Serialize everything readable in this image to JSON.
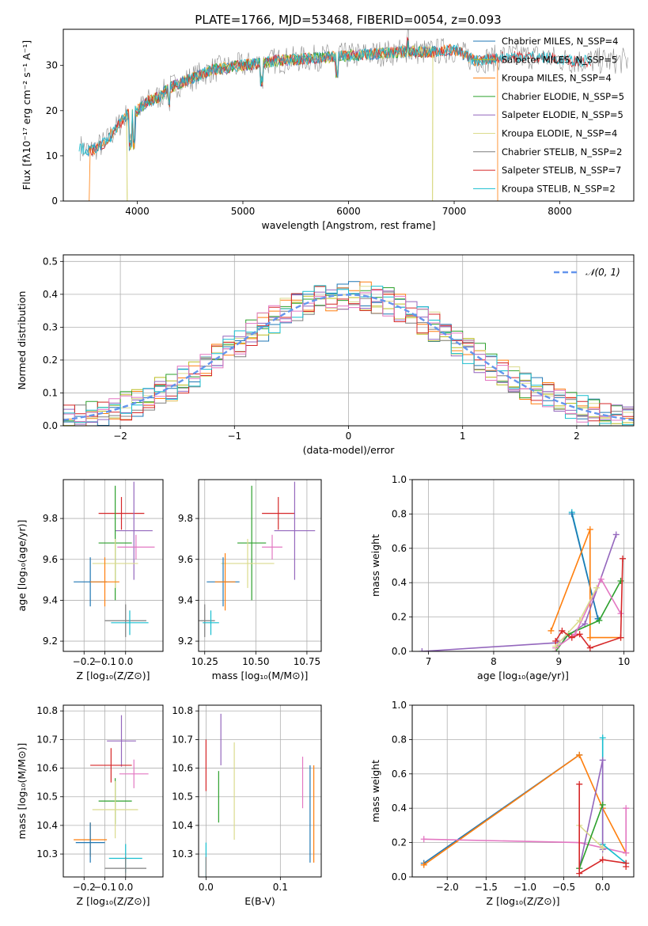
{
  "figure": {
    "title": "PLATE=1766, MJD=53468, FIBERID=0054, z=0.093"
  },
  "colors": {
    "Chabrier MILES": "#1f77b4",
    "Salpeter MILES": "#bcbd22",
    "Kroupa MILES": "#ff7f0e",
    "Chabrier ELODIE": "#2ca02c",
    "Salpeter ELODIE": "#9467bd",
    "Kroupa ELODIE": "#dbdb8d",
    "Chabrier STELIB": "#7f7f7f",
    "Salpeter STELIB": "#d62728",
    "Kroupa STELIB": "#17becf",
    "pink": "#e377c2",
    "normal_line": "#6495ed"
  },
  "chart_data": [
    {
      "id": "spectrum",
      "type": "line",
      "xlabel": "wavelength [Angstrom, rest frame]",
      "ylabel": "Flux [fλ10⁻¹⁷ erg cm⁻² s⁻¹ A⁻¹]",
      "xlim": [
        3300,
        8700
      ],
      "ylim": [
        0,
        38
      ],
      "xticks": [
        4000,
        5000,
        6000,
        7000,
        8000
      ],
      "yticks": [
        0,
        10,
        20,
        30
      ],
      "grid": false,
      "legend": "right",
      "series": [
        {
          "name": "Chabrier MILES, N_SSP=4"
        },
        {
          "name": "Salpeter MILES, N_SSP=5"
        },
        {
          "name": "Kroupa MILES, N_SSP=4"
        },
        {
          "name": "Chabrier ELODIE, N_SSP=5"
        },
        {
          "name": "Salpeter ELODIE, N_SSP=5"
        },
        {
          "name": "Kroupa ELODIE, N_SSP=4"
        },
        {
          "name": "Chabrier STELIB, N_SSP=2"
        },
        {
          "name": "Salpeter STELIB, N_SSP=7"
        },
        {
          "name": "Kroupa STELIB, N_SSP=2"
        }
      ],
      "continuum": {
        "x": [
          3450,
          3550,
          3700,
          3800,
          3900,
          4000,
          4100,
          4200,
          4300,
          4500,
          4700,
          5000,
          5300,
          5600,
          5900,
          6200,
          6500,
          6800,
          7000,
          7200,
          7500,
          7800,
          8100,
          8400,
          8600
        ],
        "y": [
          12,
          11,
          13,
          16,
          19,
          20,
          22,
          23,
          25,
          27,
          29,
          30,
          31,
          31.5,
          32,
          32.5,
          33,
          33,
          33.5,
          31,
          32,
          32,
          31,
          31,
          31
        ]
      }
    },
    {
      "id": "residuals",
      "type": "line",
      "xlabel": "(data-model)/error",
      "ylabel": "Normed distribution",
      "xlim": [
        -2.5,
        2.5
      ],
      "ylim": [
        0,
        0.52
      ],
      "xticks": [
        -2,
        -1,
        0,
        1,
        2
      ],
      "yticks": [
        0.0,
        0.1,
        0.2,
        0.3,
        0.4,
        0.5
      ],
      "grid": true,
      "legend": "top-right",
      "normal_label": "𝒩(0, 1)"
    },
    {
      "id": "age_vs_Z",
      "type": "scatter",
      "xlabel": "Z [log₁₀(Z/Z⊙)]",
      "ylabel": "age  [log₁₀(age/yr)]",
      "xlim": [
        -0.3,
        0.18
      ],
      "ylim": [
        9.15,
        9.99
      ],
      "xticks": [
        -0.2,
        -0.1,
        0.0
      ],
      "yticks": [
        9.2,
        9.4,
        9.6,
        9.8
      ],
      "grid": true,
      "points": [
        {
          "c": "Salpeter STELIB",
          "x": -0.02,
          "y": 9.825,
          "xe": 0.11,
          "ye": 0.08
        },
        {
          "c": "Salpeter ELODIE",
          "x": 0.04,
          "y": 9.74,
          "xe": 0.09,
          "ye": 0.24
        },
        {
          "c": "Chabrier ELODIE",
          "x": -0.05,
          "y": 9.68,
          "xe": 0.08,
          "ye": 0.28
        },
        {
          "c": "pink",
          "x": 0.05,
          "y": 9.66,
          "xe": 0.09,
          "ye": 0.06
        },
        {
          "c": "Kroupa ELODIE",
          "x": -0.05,
          "y": 9.58,
          "xe": 0.11,
          "ye": 0.12
        },
        {
          "c": "Chabrier MILES",
          "x": -0.17,
          "y": 9.49,
          "xe": 0.08,
          "ye": 0.12
        },
        {
          "c": "Kroupa MILES",
          "x": -0.1,
          "y": 9.49,
          "xe": 0.07,
          "ye": 0.12
        },
        {
          "c": "Chabrier STELIB",
          "x": 0.0,
          "y": 9.3,
          "xe": 0.1,
          "ye": 0.08
        },
        {
          "c": "Kroupa STELIB",
          "x": 0.02,
          "y": 9.29,
          "xe": 0.09,
          "ye": 0.06
        }
      ]
    },
    {
      "id": "age_vs_mass",
      "type": "scatter",
      "xlabel": "mass [log₁₀(M/M⊙)]",
      "xlim": [
        10.22,
        10.82
      ],
      "ylim": [
        9.15,
        9.99
      ],
      "xticks": [
        10.25,
        10.5,
        10.75
      ],
      "yticks": [
        9.2,
        9.4,
        9.6,
        9.8
      ],
      "grid": true,
      "points": [
        {
          "c": "Salpeter STELIB",
          "x": 10.61,
          "y": 9.825,
          "xe": 0.08,
          "ye": 0.08
        },
        {
          "c": "Salpeter ELODIE",
          "x": 10.69,
          "y": 9.74,
          "xe": 0.1,
          "ye": 0.24
        },
        {
          "c": "Chabrier ELODIE",
          "x": 10.48,
          "y": 9.68,
          "xe": 0.07,
          "ye": 0.28
        },
        {
          "c": "pink",
          "x": 10.58,
          "y": 9.66,
          "xe": 0.05,
          "ye": 0.06
        },
        {
          "c": "Kroupa ELODIE",
          "x": 10.46,
          "y": 9.58,
          "xe": 0.13,
          "ye": 0.12
        },
        {
          "c": "Chabrier MILES",
          "x": 10.34,
          "y": 9.49,
          "xe": 0.08,
          "ye": 0.12
        },
        {
          "c": "Kroupa MILES",
          "x": 10.35,
          "y": 9.49,
          "xe": 0.05,
          "ye": 0.14
        },
        {
          "c": "Chabrier STELIB",
          "x": 10.25,
          "y": 9.3,
          "xe": 0.05,
          "ye": 0.08
        },
        {
          "c": "Kroupa STELIB",
          "x": 10.28,
          "y": 9.29,
          "xe": 0.04,
          "ye": 0.06
        }
      ]
    },
    {
      "id": "weight_vs_age",
      "type": "line",
      "xlabel": "age  [log₁₀(age/yr)]",
      "ylabel": "mass weight",
      "xlim": [
        6.75,
        10.15
      ],
      "ylim": [
        0,
        1.0
      ],
      "xticks": [
        7,
        8,
        9,
        10
      ],
      "yticks": [
        0.0,
        0.2,
        0.4,
        0.6,
        0.8,
        1.0
      ],
      "grid": true,
      "series": [
        {
          "c": "Kroupa STELIB",
          "x": [
            9.2,
            9.6
          ],
          "y": [
            0.81,
            0.19
          ]
        },
        {
          "c": "Chabrier MILES",
          "x": [
            9.2,
            9.6
          ],
          "y": [
            0.8,
            0.19
          ]
        },
        {
          "c": "Kroupa MILES",
          "x": [
            8.88,
            9.48,
            9.48,
            9.48,
            9.95
          ],
          "y": [
            0.12,
            0.71,
            0.08,
            0.08,
            0.08
          ]
        },
        {
          "c": "Salpeter ELODIE",
          "x": [
            6.9,
            8.98,
            9.4,
            9.88
          ],
          "y": [
            0.0,
            0.05,
            0.16,
            0.68
          ]
        },
        {
          "c": "Chabrier ELODIE",
          "x": [
            8.95,
            9.15,
            9.62,
            9.95
          ],
          "y": [
            0.0,
            0.1,
            0.18,
            0.41
          ]
        },
        {
          "c": "pink",
          "x": [
            8.95,
            9.25,
            9.65,
            9.95
          ],
          "y": [
            0.02,
            0.1,
            0.42,
            0.22
          ]
        },
        {
          "c": "Kroupa ELODIE",
          "x": [
            8.95,
            9.32,
            9.58
          ],
          "y": [
            0.03,
            0.18,
            0.37
          ]
        },
        {
          "c": "Salpeter STELIB",
          "x": [
            8.95,
            9.05,
            9.2,
            9.32,
            9.48,
            9.95,
            9.98
          ],
          "y": [
            0.06,
            0.12,
            0.08,
            0.1,
            0.02,
            0.08,
            0.54
          ]
        }
      ]
    },
    {
      "id": "mass_vs_Z",
      "type": "scatter",
      "xlabel": "Z [log₁₀(Z/Z⊙)]",
      "ylabel": "mass [log₁₀(M/M⊙)]",
      "xlim": [
        -0.3,
        0.18
      ],
      "ylim": [
        10.22,
        10.82
      ],
      "xticks": [
        -0.2,
        -0.1,
        0.0
      ],
      "yticks": [
        10.3,
        10.4,
        10.5,
        10.6,
        10.7,
        10.8
      ],
      "grid": true,
      "points": [
        {
          "c": "Salpeter ELODIE",
          "x": -0.02,
          "y": 10.695,
          "xe": 0.07,
          "ye": 0.09
        },
        {
          "c": "Salpeter STELIB",
          "x": -0.07,
          "y": 10.61,
          "xe": 0.1,
          "ye": 0.06
        },
        {
          "c": "pink",
          "x": 0.04,
          "y": 10.58,
          "xe": 0.07,
          "ye": 0.05
        },
        {
          "c": "Chabrier ELODIE",
          "x": -0.05,
          "y": 10.485,
          "xe": 0.08,
          "ye": 0.08
        },
        {
          "c": "Kroupa ELODIE",
          "x": -0.05,
          "y": 10.455,
          "xe": 0.11,
          "ye": 0.1
        },
        {
          "c": "Kroupa MILES",
          "x": -0.17,
          "y": 10.35,
          "xe": 0.08,
          "ye": 0.06
        },
        {
          "c": "Chabrier MILES",
          "x": -0.17,
          "y": 10.34,
          "xe": 0.07,
          "ye": 0.07
        },
        {
          "c": "Kroupa STELIB",
          "x": 0.0,
          "y": 10.285,
          "xe": 0.08,
          "ye": 0.05
        },
        {
          "c": "Chabrier STELIB",
          "x": 0.0,
          "y": 10.25,
          "xe": 0.1,
          "ye": 0.04
        }
      ]
    },
    {
      "id": "mass_vs_EBV",
      "type": "scatter",
      "xlabel": "E(B-V)",
      "xlim": [
        -0.01,
        0.155
      ],
      "ylim": [
        10.22,
        10.82
      ],
      "xticks": [
        0.0,
        0.1
      ],
      "yticks": [
        10.3,
        10.4,
        10.5,
        10.6,
        10.7,
        10.8
      ],
      "grid": true,
      "points": [
        {
          "c": "Salpeter STELIB",
          "x": 0.0,
          "y": 10.61,
          "ye": 0.09
        },
        {
          "c": "Salpeter ELODIE",
          "x": 0.02,
          "y": 10.7,
          "ye": 0.09
        },
        {
          "c": "Chabrier ELODIE",
          "x": 0.017,
          "y": 10.5,
          "ye": 0.09
        },
        {
          "c": "Kroupa ELODIE",
          "x": 0.038,
          "y": 10.52,
          "ye": 0.17
        },
        {
          "c": "pink",
          "x": 0.13,
          "y": 10.55,
          "ye": 0.09
        },
        {
          "c": "Chabrier MILES",
          "x": 0.14,
          "y": 10.44,
          "ye": 0.17
        },
        {
          "c": "Kroupa MILES",
          "x": 0.145,
          "y": 10.44,
          "ye": 0.17
        },
        {
          "c": "Kroupa STELIB",
          "x": 0.0,
          "y": 10.28,
          "ye": 0.06
        },
        {
          "c": "Chabrier STELIB",
          "x": 0.0,
          "y": 10.25,
          "ye": 0.04
        }
      ]
    },
    {
      "id": "weight_vs_Z",
      "type": "line",
      "xlabel": "Z [log₁₀(Z/Z⊙)]",
      "ylabel": "mass weight",
      "xlim": [
        -2.45,
        0.4
      ],
      "ylim": [
        0,
        1.0
      ],
      "xticks": [
        -2.0,
        -1.5,
        -1.0,
        -0.5,
        0.0
      ],
      "yticks": [
        0.0,
        0.2,
        0.4,
        0.6,
        0.8,
        1.0
      ],
      "grid": true,
      "series": [
        {
          "c": "Chabrier MILES",
          "x": [
            -2.3,
            -0.3
          ],
          "y": [
            0.08,
            0.71
          ]
        },
        {
          "c": "Kroupa MILES",
          "x": [
            -2.3,
            -0.3,
            0.0,
            0.3
          ],
          "y": [
            0.07,
            0.71,
            0.4,
            0.14
          ]
        },
        {
          "c": "pink",
          "x": [
            -2.3,
            -0.3,
            0.3,
            0.3
          ],
          "y": [
            0.22,
            0.2,
            0.14,
            0.4
          ]
        },
        {
          "c": "Kroupa STELIB",
          "x": [
            0.0,
            0.0,
            0.3
          ],
          "y": [
            0.81,
            0.19,
            0.08
          ]
        },
        {
          "c": "Salpeter ELODIE",
          "x": [
            -0.3,
            0.0,
            0.0
          ],
          "y": [
            0.05,
            0.68,
            0.16
          ]
        },
        {
          "c": "Kroupa ELODIE",
          "x": [
            -0.3,
            0.0
          ],
          "y": [
            0.3,
            0.17
          ]
        },
        {
          "c": "Chabrier ELODIE",
          "x": [
            -0.3,
            0.0
          ],
          "y": [
            0.05,
            0.42
          ]
        },
        {
          "c": "Salpeter STELIB",
          "x": [
            -0.3,
            -0.3,
            0.0,
            0.3,
            0.3
          ],
          "y": [
            0.54,
            0.02,
            0.1,
            0.08,
            0.06
          ]
        }
      ]
    }
  ]
}
